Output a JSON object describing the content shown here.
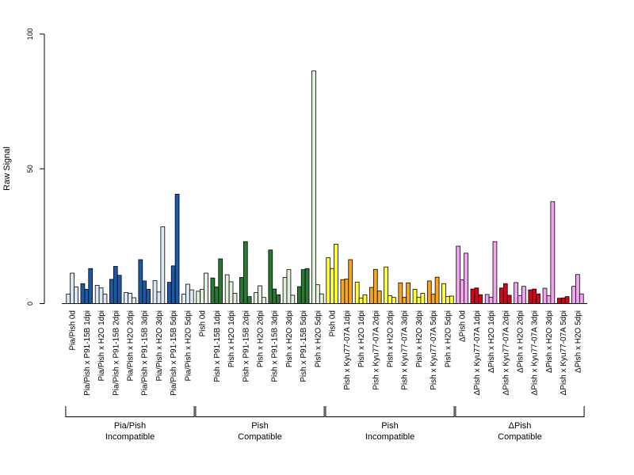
{
  "chart_data": {
    "type": "bar",
    "title": "",
    "xlabel": "",
    "ylabel": "Raw Signal",
    "ylim": [
      0,
      100
    ],
    "yticks": [
      0,
      50,
      100
    ],
    "grid": false,
    "legend": "none",
    "bar_stroke": "#000000",
    "categories": [
      "Pia/Pish 0d",
      "Pia/Pish x P91-15B 1dpi",
      "Pia/Pish x H2O 1dpi",
      "Pia/Pish x P91-15B 2dpi",
      "Pia/Pish x H2O 2dpi",
      "Pia/Pish x P91-15B 3dpi",
      "Pia/Pish x H2O 3dpi",
      "Pia/Pish x P91-15B 5dpi",
      "Pia/Pish x H2O 5dpi",
      "Pish 0d",
      "Pish x P91-15B 1dpi",
      "Pish x H2O 1dpi",
      "Pish x P91-15B 2dpi",
      "Pish x H2O 2dpi",
      "Pish x P91-15B 3dpi",
      "Pish x H2O 3dpi",
      "Pish x P91-15B 5dpi",
      "Pish x H2O 5dpi",
      "Pish 0d",
      "Pish x Kyu77-07A 1dpi",
      "Pish x H2O 1dpi",
      "Pish x Kyu77-07A 2dpi",
      "Pish x H2O 2dpi",
      "Pish x Kyu77-07A 3dpi",
      "Pish x H2O 3dpi",
      "Pish x Kyu77-07A 5dpi",
      "Pish x H2O 5dpi",
      "ΔPish 0d",
      "ΔPish x Kyu77-07A 1dpi",
      "ΔPish x H2O 1dpi",
      "ΔPish x Kyu77-07A 2dpi",
      "ΔPish x H2O 2dpi",
      "ΔPish x Kyu77-07A 3dpi",
      "ΔPish x H2O 3dpi",
      "ΔPish x Kyu77-07A 5dpi",
      "ΔPish x H2O 5dpi"
    ],
    "values": [
      [
        3.5,
        11.3,
        6.2
      ],
      [
        7.4,
        5.3,
        13.0
      ],
      [
        6.8,
        5.8,
        3.5
      ],
      [
        9.0,
        13.8,
        10.5
      ],
      [
        4.1,
        3.8,
        2.2
      ],
      [
        16.3,
        8.4,
        5.3
      ],
      [
        8.5,
        4.3,
        28.5
      ],
      [
        7.9,
        14.0,
        40.6
      ],
      [
        3.5,
        7.2,
        5.1
      ],
      [
        4.6,
        5.3,
        11.3
      ],
      [
        9.5,
        6.2,
        16.6
      ],
      [
        10.7,
        8.1,
        3.8
      ],
      [
        9.7,
        23.0,
        2.6
      ],
      [
        4.1,
        6.6,
        2.3
      ],
      [
        19.9,
        5.4,
        3.3
      ],
      [
        9.7,
        12.6,
        3.1
      ],
      [
        6.3,
        12.6,
        13.0
      ],
      [
        86.3,
        7.0,
        3.6
      ],
      [
        17.0,
        13.0,
        22.0
      ],
      [
        8.9,
        9.1,
        16.3
      ],
      [
        8.0,
        2.1,
        3.3
      ],
      [
        6.0,
        12.7,
        4.7
      ],
      [
        13.6,
        2.9,
        2.3
      ],
      [
        7.7,
        2.3,
        7.7
      ],
      [
        5.3,
        2.3,
        3.8
      ],
      [
        8.4,
        3.5,
        9.8
      ],
      [
        7.4,
        2.6,
        2.8
      ],
      [
        21.3,
        8.8,
        18.7
      ],
      [
        5.4,
        5.8,
        3.3
      ],
      [
        3.4,
        2.4,
        23.0
      ],
      [
        5.8,
        7.4,
        3.1
      ],
      [
        7.8,
        3.0,
        6.4
      ],
      [
        5.1,
        5.4,
        3.6
      ],
      [
        5.7,
        2.9,
        37.8
      ],
      [
        2.0,
        2.1,
        2.6
      ],
      [
        6.4,
        10.8,
        3.6
      ]
    ],
    "colors": [
      "#dce9f5",
      "#1a5aa8",
      "#dce9f5",
      "#1a5aa8",
      "#dce9f5",
      "#1a5aa8",
      "#dce9f5",
      "#1a5aa8",
      "#dce9f5",
      "#e3f0dc",
      "#2a7a35",
      "#e3f0dc",
      "#2a7a35",
      "#e3f0dc",
      "#2a7a35",
      "#e3f0dc",
      "#2a7a35",
      "#e3f0dc",
      "#ffff38",
      "#f5a623",
      "#ffff38",
      "#f5a623",
      "#ffff38",
      "#f5a623",
      "#ffff38",
      "#f5a623",
      "#ffff38",
      "#f2a6f0",
      "#d0091a",
      "#f2a6f0",
      "#d0091a",
      "#f2a6f0",
      "#d0091a",
      "#f2a6f0",
      "#d0091a",
      "#f2a6f0"
    ],
    "groups": [
      {
        "line1": "Pia/Pish",
        "line2": "Incompatible",
        "start": 0,
        "end": 8
      },
      {
        "line1": "Pish",
        "line2": "Compatible",
        "start": 9,
        "end": 17
      },
      {
        "line1": "Pish",
        "line2": "Incompatible",
        "start": 18,
        "end": 26
      },
      {
        "line1": "ΔPish",
        "line2": "Compatible",
        "start": 27,
        "end": 35
      }
    ]
  }
}
